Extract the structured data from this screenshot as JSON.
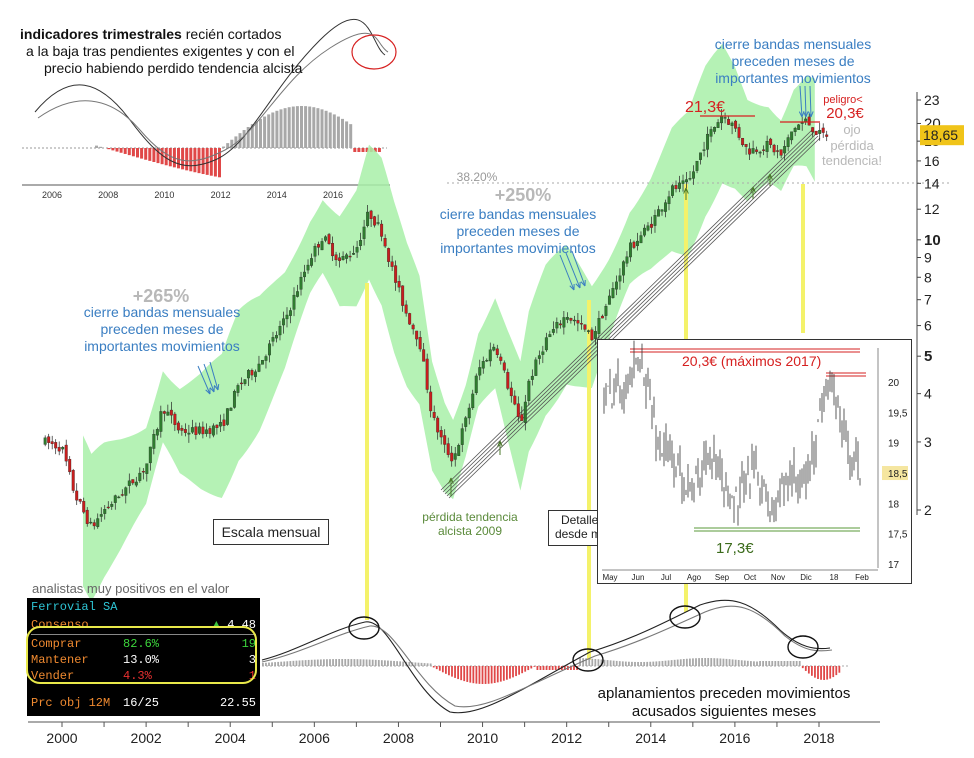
{
  "chart_data": {
    "type": "line",
    "title": "Ferrovial SA - escala mensual",
    "x": [
      2000,
      2001,
      2002,
      2003,
      2004,
      2005,
      2006,
      2007,
      2008,
      2009,
      2010,
      2011,
      2012,
      2013,
      2014,
      2015,
      2016,
      2017,
      2018
    ],
    "series": [
      {
        "name": "Precio (€)",
        "values": [
          2.9,
          1.8,
          2.6,
          3.1,
          3.9,
          6.0,
          10.0,
          11.5,
          6.0,
          2.8,
          5.8,
          5.5,
          6.5,
          9.5,
          13.5,
          20.5,
          18.0,
          17.5,
          18.65
        ]
      }
    ],
    "xlabel": "",
    "ylabel": "€",
    "y_ticks": [
      "23",
      "20",
      "18",
      "16",
      "14",
      "12",
      "10",
      "9",
      "8",
      "7",
      "6",
      "5",
      "4",
      "3",
      "2"
    ],
    "x_ticks": [
      "2000",
      "2002",
      "2004",
      "2006",
      "2008",
      "2010",
      "2012",
      "2014",
      "2016",
      "2018"
    ],
    "last_price": "18,65",
    "fib_label": "38.20%"
  },
  "quarterly_panel": {
    "title_bold": "indicadores trimestrales",
    "title_rest": " recién cortados",
    "line2": "a la baja tras pendientes exigentes y con el",
    "line3": "precio habiendo perdido tendencia alcista",
    "x_ticks": [
      "2006",
      "2008",
      "2010",
      "2012",
      "2014",
      "2016"
    ]
  },
  "annotations": {
    "gain_265": "+265%",
    "gain_250": "+250%",
    "bands_left": [
      "cierre bandas mensuales",
      "preceden meses de",
      "importantes movimientos"
    ],
    "bands_mid": [
      "cierre bandas mensuales",
      "preceden meses de",
      "importantes movimientos"
    ],
    "bands_top": [
      "cierre bandas mensuales",
      "preceden meses de",
      "importantes movimientos"
    ],
    "price_213": "21,3€",
    "price_203": "20,3€",
    "peligro": "peligro<",
    "ojo": [
      "ojo",
      "pérdida",
      "tendencia!"
    ],
    "trend_loss": [
      "pérdida tendencia",
      "alcista 2009"
    ],
    "monthly_scale": "Escala mensual",
    "detail_box": [
      "Detalle movimiento",
      "desde máximos 2017"
    ],
    "flatten": [
      "aplanamientos preceden movimientos",
      "acusados siguientes meses"
    ],
    "analysts_caption": "analistas muy positivos en el valor"
  },
  "analyst_table": {
    "name": "Ferrovial SA",
    "consensus_label": "Consenso",
    "consensus_value": "4.48",
    "rows": [
      {
        "label": "Comprar",
        "pct": "82.6%",
        "count": "19"
      },
      {
        "label": "Mantener",
        "pct": "13.0%",
        "count": "3"
      },
      {
        "label": "Vender",
        "pct": "4.3%",
        "count": "1"
      }
    ],
    "target_label": "Prc obj 12M",
    "target_ratio": "16/25",
    "target_value": "22.55"
  },
  "inset": {
    "max_label": "20,3€ (máximos 2017)",
    "min_label": "17,3€",
    "y_ticks": [
      "20",
      "19,5",
      "19",
      "18,5",
      "18",
      "17,5",
      "17"
    ],
    "x_ticks": [
      "May",
      "Jun",
      "Jul",
      "Ago",
      "Sep",
      "Oct",
      "Nov",
      "Dic",
      "18",
      "Feb"
    ],
    "last_price": "18,5"
  },
  "colors": {
    "band": "#a8f0a8",
    "up": "#2f7d2f",
    "down": "#c81e1e",
    "hist_pos": "#a8a8a8",
    "hist_neg": "#e04848",
    "annotation_blue": "#3a7ec2",
    "price_tag": "#f0c419"
  }
}
